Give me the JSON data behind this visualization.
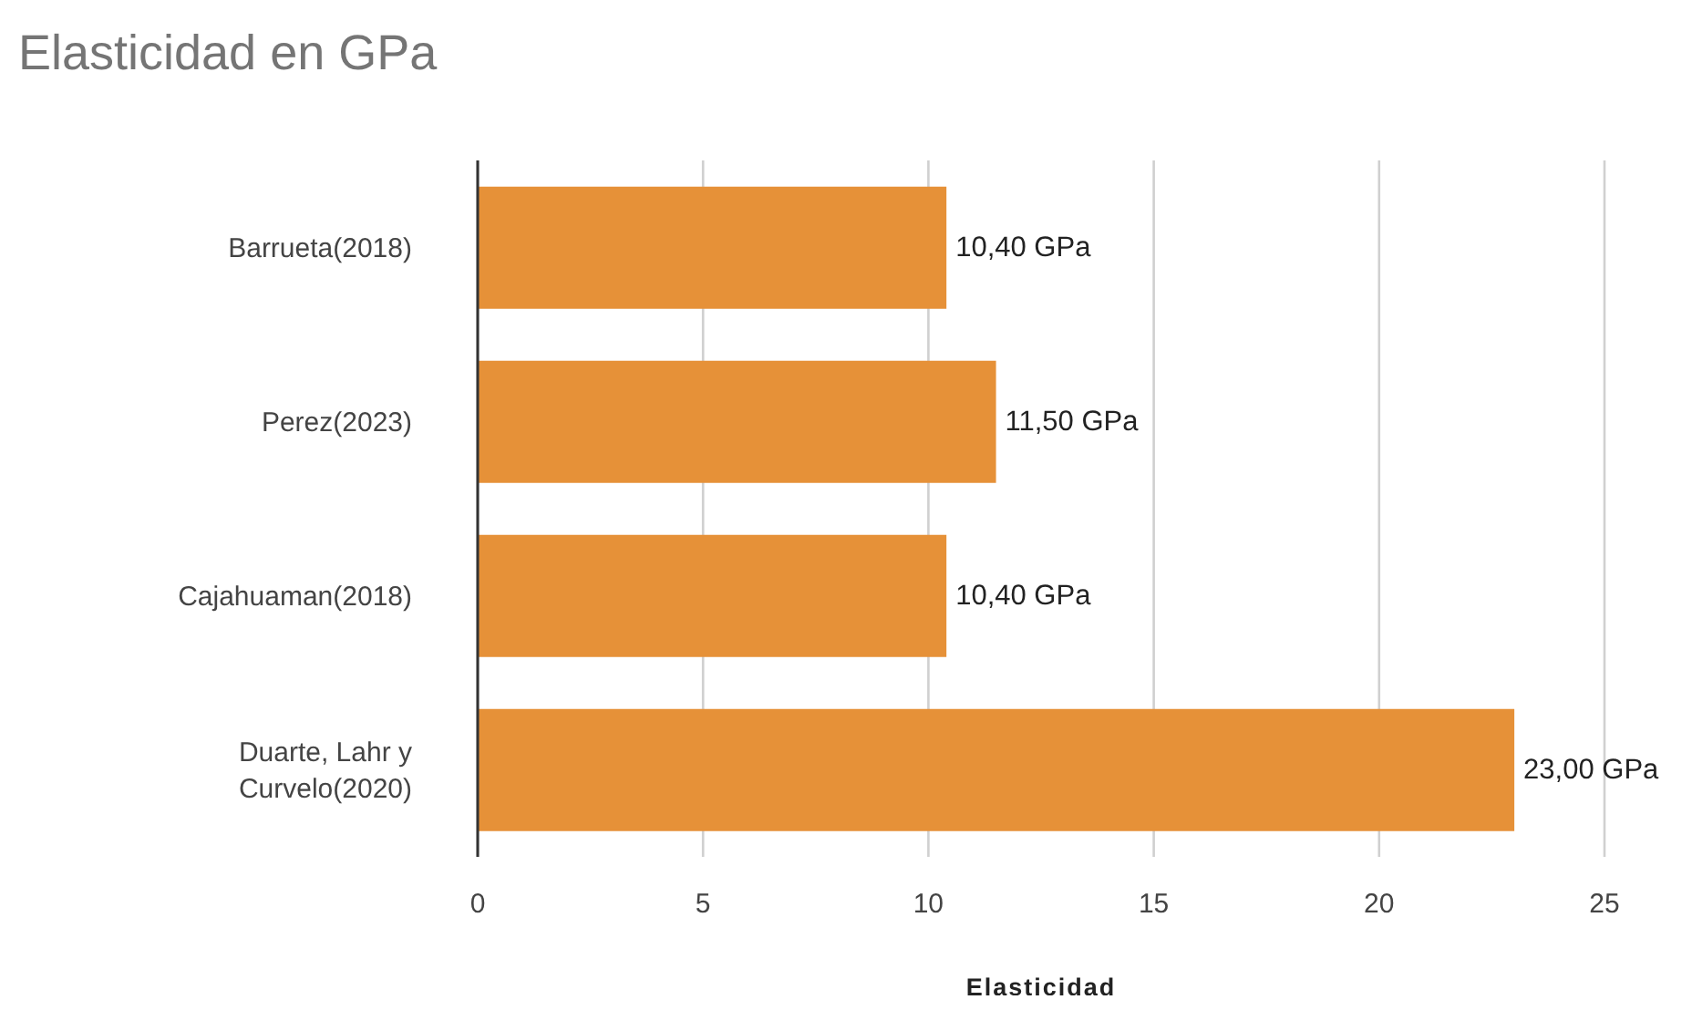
{
  "chart_data": {
    "type": "bar",
    "title": "Elasticidad en GPa",
    "xlabel": "Elasticidad",
    "orientation": "horizontal",
    "categories": [
      "Barrueta(2018)",
      "Perez(2023)",
      "Cajahuaman(2018)",
      "Duarte, Lahr y Curvelo(2020)"
    ],
    "values": [
      10.4,
      11.5,
      10.4,
      23
    ],
    "value_labels": [
      "10,40 GPa",
      "11,50 GPa",
      "10,40 GPa",
      "23,00 GPa"
    ],
    "color": "#e69138",
    "xlim": [
      0,
      25
    ],
    "xticks": [
      0,
      5,
      10,
      15,
      20,
      25
    ],
    "grid": "x"
  }
}
